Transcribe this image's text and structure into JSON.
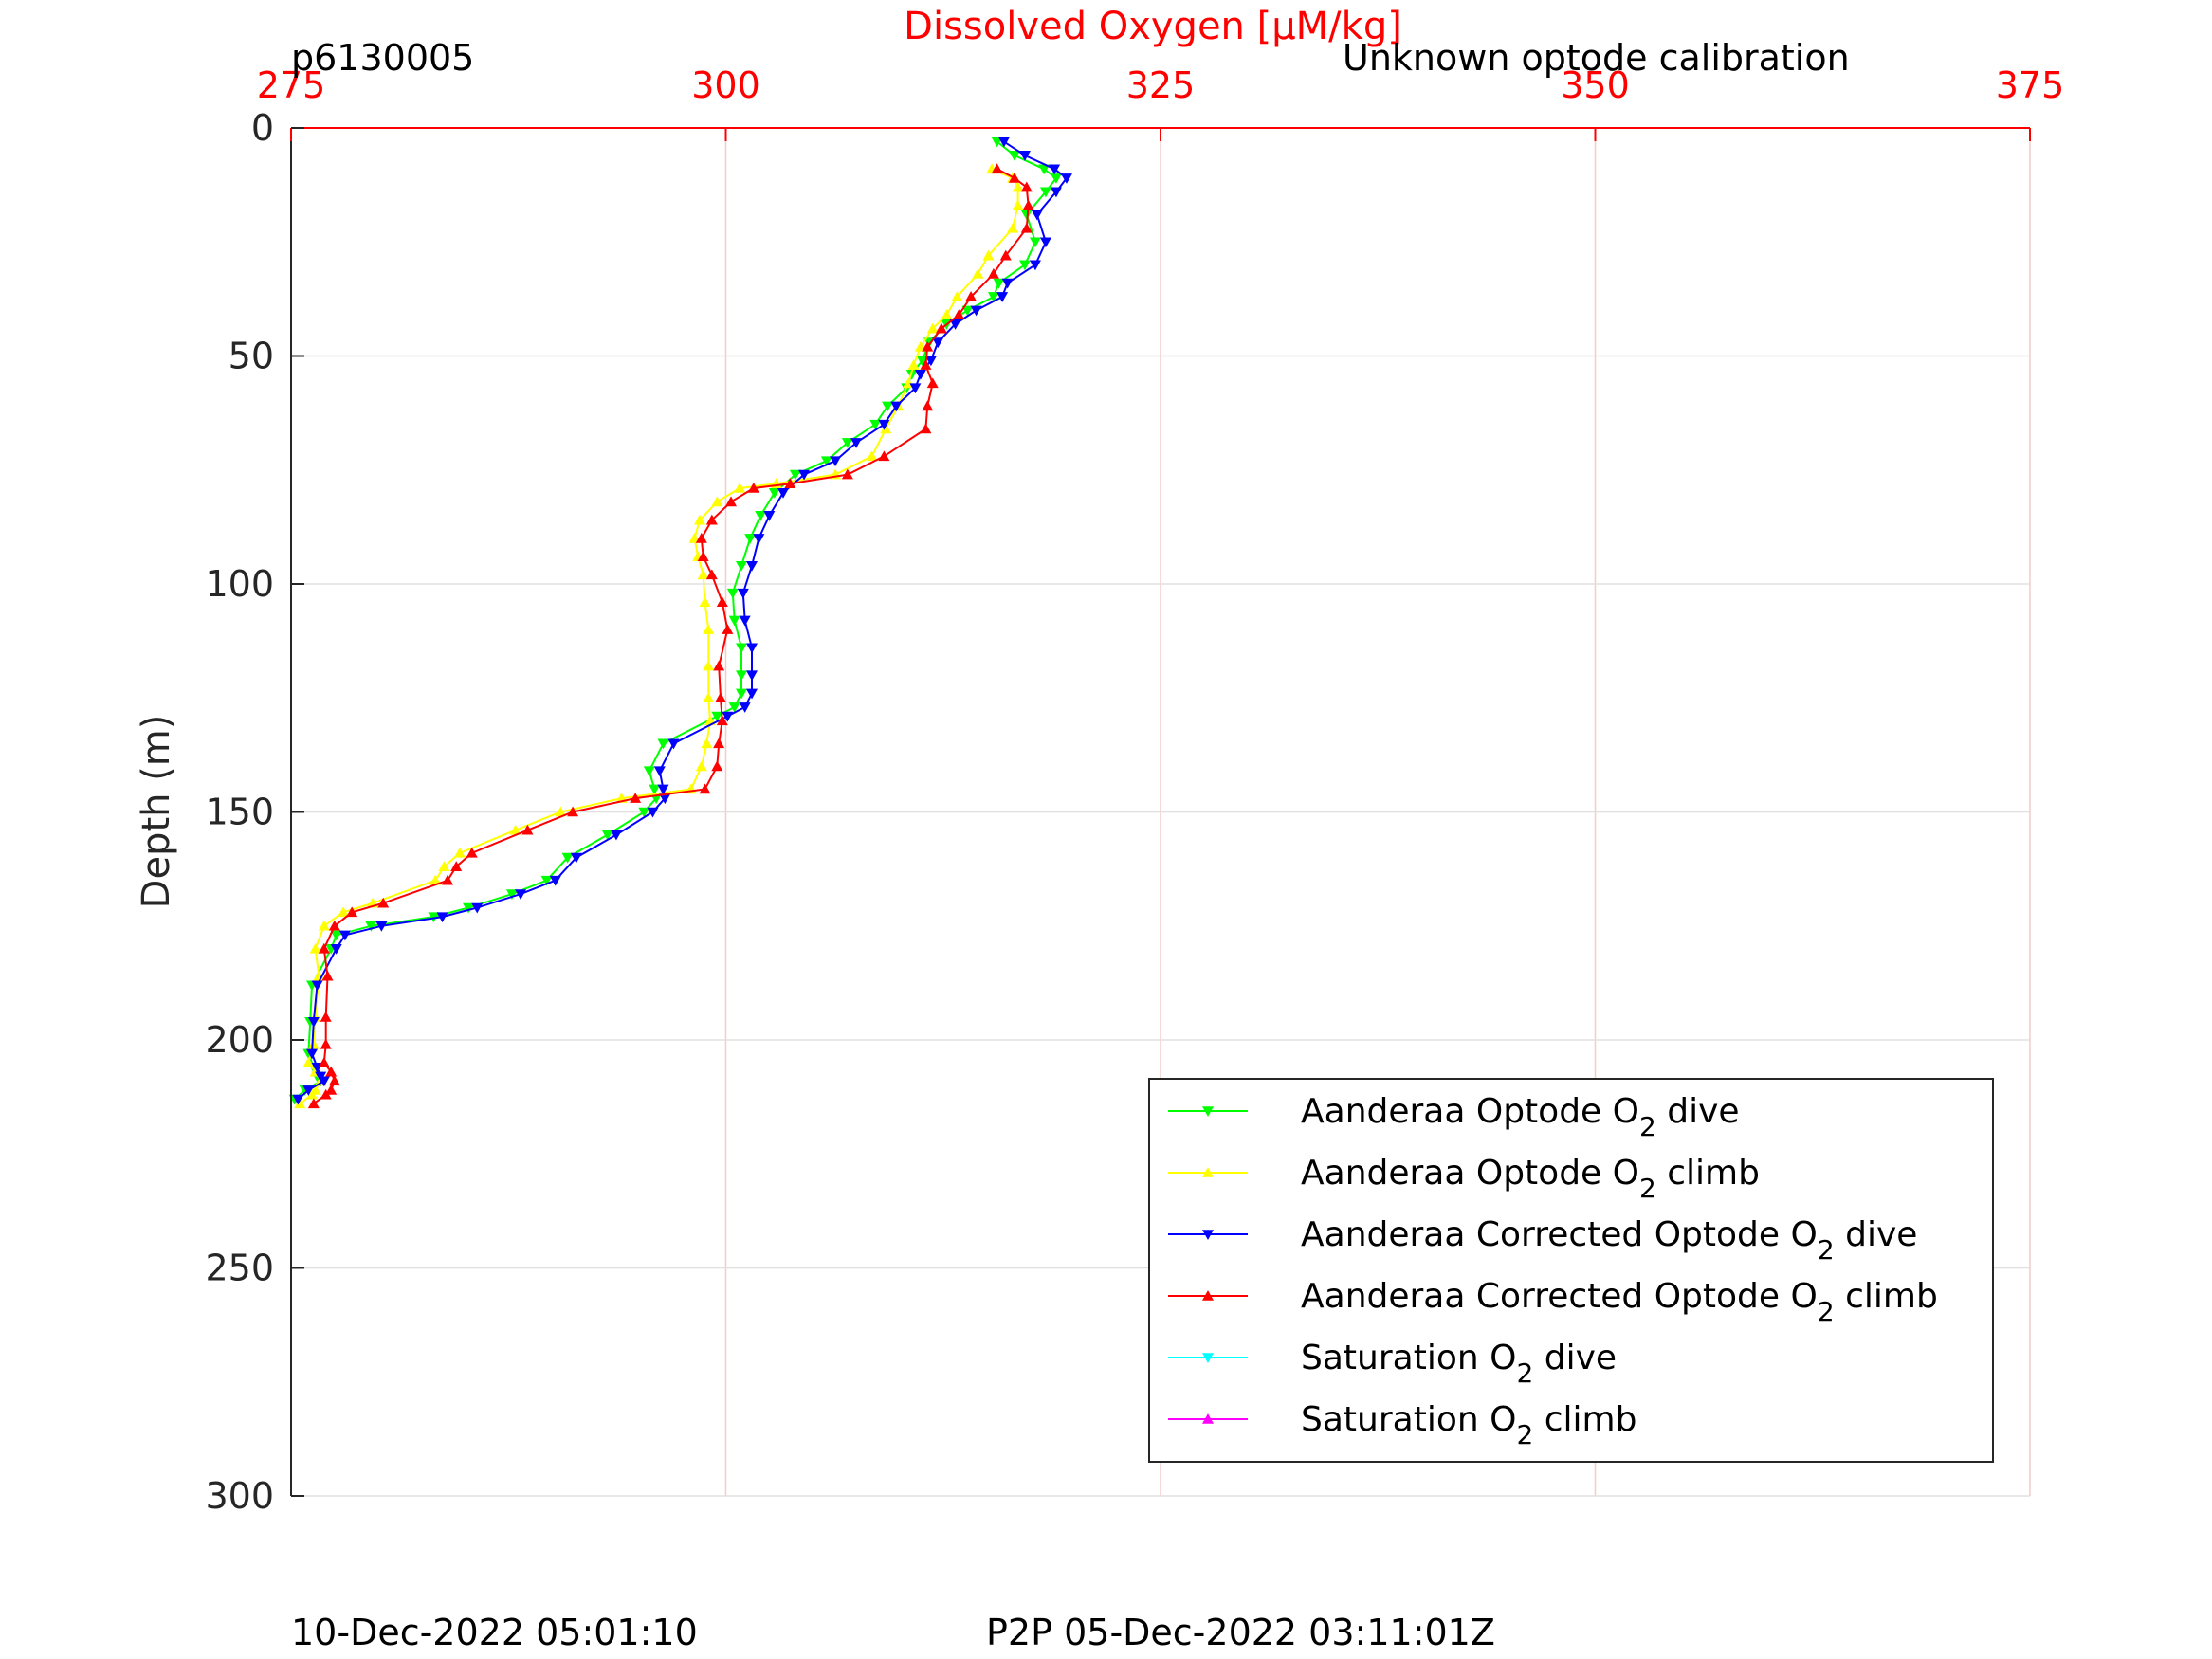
{
  "header": {
    "profile_id": "p6130005",
    "calibration_note": "Unknown optode calibration"
  },
  "footer": {
    "left_timestamp": "10-Dec-2022 05:01:10",
    "right_timestamp": "P2P 05-Dec-2022 03:11:01Z"
  },
  "chart_data": {
    "type": "line",
    "title": "",
    "xlabel": "Dissolved Oxygen [µM/kg]",
    "ylabel": "Depth (m)",
    "xlim": [
      275,
      375
    ],
    "ylim": [
      0,
      300
    ],
    "y_reversed": true,
    "x_axis_position": "top",
    "x_ticks": [
      275,
      300,
      325,
      350,
      375
    ],
    "y_ticks": [
      0,
      50,
      100,
      150,
      200,
      250,
      300
    ],
    "grid": true,
    "legend_position": "bottom-right",
    "colors": {
      "axis_x": "#ff0000",
      "axis_y": "#262626",
      "grid": "#e0e0e0",
      "grid_x": "#f4cccc"
    },
    "series": [
      {
        "name": "Aanderaa Optode O",
        "name_sub": "2",
        "name_suffix": " dive",
        "color": "#00ff00",
        "marker": "triangle-down",
        "x": [
          315.6,
          316.6,
          318.3,
          319.0,
          318.4,
          317.3,
          317.8,
          317.2,
          315.7,
          315.4,
          313.9,
          312.7,
          311.7,
          311.3,
          310.7,
          310.4,
          309.3,
          308.6,
          307.0,
          305.8,
          304.0,
          302.8,
          302.0,
          301.4,
          300.9,
          300.4,
          300.5,
          300.9,
          300.9,
          300.9,
          300.5,
          299.5,
          296.4,
          295.6,
          295.9,
          296.0,
          295.3,
          293.2,
          290.9,
          289.7,
          287.7,
          285.2,
          283.2,
          279.6,
          277.6,
          277.3,
          276.2,
          276.1,
          276.0,
          276.3,
          276.5,
          276.7,
          275.8,
          275.2
        ],
        "y": [
          3,
          6,
          9,
          11,
          14,
          19,
          25,
          30,
          34,
          37,
          40,
          43,
          47,
          51,
          54,
          57,
          61,
          65,
          69,
          73,
          76,
          80,
          85,
          90,
          96,
          102,
          108,
          114,
          120,
          124,
          127,
          129,
          135,
          141,
          145,
          147,
          150,
          155,
          160,
          165,
          168,
          171,
          173,
          175,
          177,
          180,
          188,
          196,
          203,
          206,
          208,
          209,
          211,
          213
        ]
      },
      {
        "name": "Aanderaa Optode O",
        "name_sub": "2",
        "name_suffix": " climb",
        "color": "#ffff00",
        "marker": "triangle-up",
        "x": [
          275.5,
          276.2,
          276.4,
          276.7,
          276.4,
          276.0,
          276.3,
          276.4,
          276.6,
          276.4,
          276.9,
          278.0,
          279.7,
          283.3,
          283.8,
          284.7,
          287.9,
          290.5,
          294.0,
          298.0,
          298.6,
          298.9,
          299.1,
          299.0,
          299.0,
          299.0,
          298.8,
          298.7,
          298.4,
          298.2,
          298.5,
          299.5,
          300.8,
          302.9,
          306.3,
          308.4,
          309.2,
          309.9,
          310.5,
          310.8,
          311.2,
          311.9,
          312.7,
          313.3,
          314.5,
          315.1,
          316.5,
          316.8,
          316.8,
          316.5,
          315.3
        ],
        "y": [
          214,
          212,
          211,
          209,
          207,
          205,
          201,
          195,
          186,
          180,
          175,
          172,
          170,
          165,
          162,
          159,
          154,
          150,
          147,
          145,
          140,
          135,
          130,
          125,
          118,
          110,
          104,
          98,
          94,
          90,
          86,
          82,
          79,
          78,
          76,
          72,
          66,
          61,
          56,
          52,
          48,
          44,
          41,
          37,
          32,
          28,
          22,
          17,
          13,
          11,
          9
        ]
      },
      {
        "name": "Aanderaa Corrected Optode O",
        "name_sub": "2",
        "name_suffix": " dive",
        "color": "#0000ff",
        "marker": "triangle-down",
        "x": [
          316.0,
          317.2,
          318.9,
          319.6,
          319.0,
          317.9,
          318.4,
          317.8,
          316.2,
          315.9,
          314.4,
          313.2,
          312.2,
          311.8,
          311.2,
          310.9,
          309.8,
          309.1,
          307.5,
          306.3,
          304.5,
          303.3,
          302.5,
          301.9,
          301.5,
          301.0,
          301.1,
          301.5,
          301.5,
          301.5,
          301.1,
          300.1,
          297.0,
          296.2,
          296.4,
          296.5,
          295.8,
          293.7,
          291.4,
          290.2,
          288.2,
          285.7,
          283.7,
          280.2,
          278.1,
          277.6,
          276.5,
          276.3,
          276.2,
          276.5,
          276.7,
          276.9,
          276.0,
          275.4
        ],
        "y": [
          3,
          6,
          9,
          11,
          14,
          19,
          25,
          30,
          34,
          37,
          40,
          43,
          47,
          51,
          54,
          57,
          61,
          65,
          69,
          73,
          76,
          80,
          85,
          90,
          96,
          102,
          108,
          114,
          120,
          124,
          127,
          129,
          135,
          141,
          145,
          147,
          150,
          155,
          160,
          165,
          168,
          171,
          173,
          175,
          177,
          180,
          188,
          196,
          203,
          206,
          208,
          209,
          211,
          213
        ]
      },
      {
        "name": "Aanderaa Corrected Optode O",
        "name_sub": "2",
        "name_suffix": " climb",
        "color": "#ff0000",
        "marker": "triangle-up",
        "x": [
          276.3,
          277.0,
          277.3,
          277.5,
          277.3,
          276.9,
          277.0,
          277.0,
          277.1,
          276.9,
          277.5,
          278.5,
          280.3,
          284.0,
          284.5,
          285.4,
          288.6,
          291.2,
          294.8,
          298.8,
          299.5,
          299.6,
          299.8,
          299.7,
          299.6,
          300.1,
          299.8,
          299.2,
          298.7,
          298.6,
          299.2,
          300.3,
          301.6,
          303.7,
          307.0,
          309.1,
          311.5,
          311.6,
          311.9,
          311.5,
          311.6,
          312.4,
          313.4,
          314.1,
          315.4,
          316.1,
          317.3,
          317.4,
          317.3,
          316.6,
          315.6
        ],
        "y": [
          214,
          212,
          211,
          209,
          207,
          205,
          201,
          195,
          186,
          180,
          175,
          172,
          170,
          165,
          162,
          159,
          154,
          150,
          147,
          145,
          140,
          135,
          130,
          125,
          118,
          110,
          104,
          98,
          94,
          90,
          86,
          82,
          79,
          78,
          76,
          72,
          66,
          61,
          56,
          52,
          48,
          44,
          41,
          37,
          32,
          28,
          22,
          17,
          13,
          11,
          9
        ]
      },
      {
        "name": "Saturation O",
        "name_sub": "2",
        "name_suffix": " dive",
        "color": "#00ffff",
        "marker": "triangle-down",
        "x": [],
        "y": []
      },
      {
        "name": "Saturation O",
        "name_sub": "2",
        "name_suffix": " climb",
        "color": "#ff00ff",
        "marker": "triangle-up",
        "x": [],
        "y": []
      }
    ]
  }
}
